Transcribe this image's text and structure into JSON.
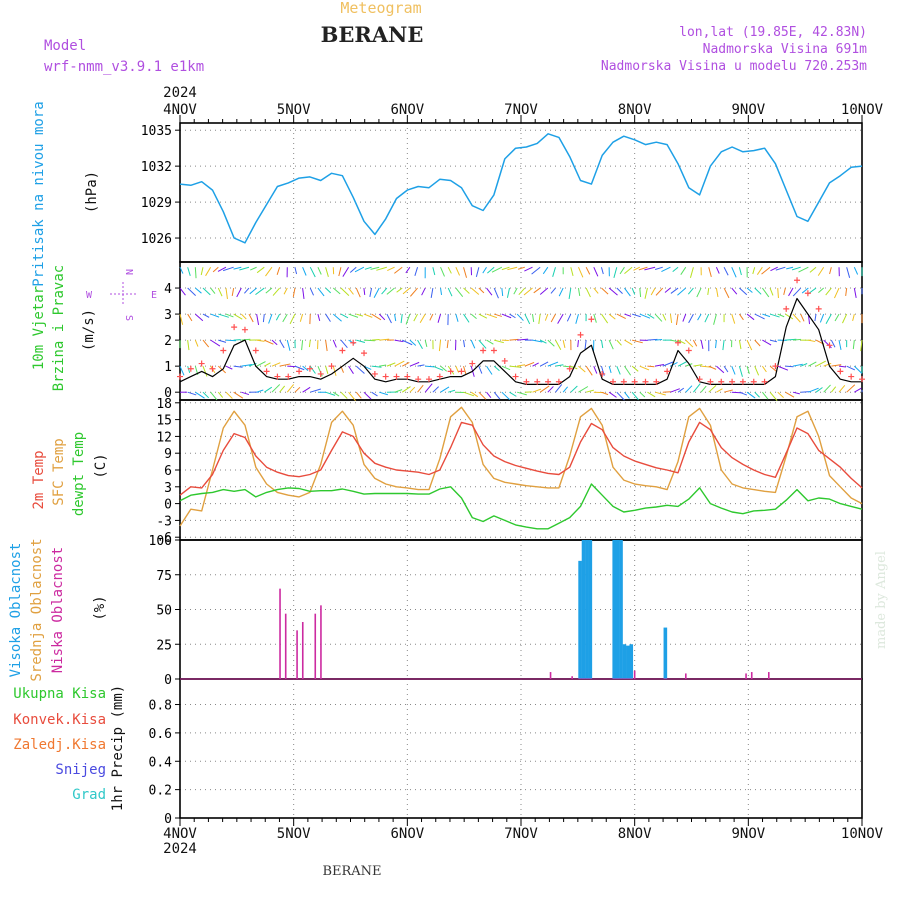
{
  "header": {
    "subtitle": "Meteogram",
    "station": "BERANE",
    "model_label": "Model",
    "model_name": "wrf-nmm_v3.9.1 e1km",
    "location": "lon,lat (19.85E, 42.83N)",
    "elevation": "Nadmorska Visina 691m",
    "model_elevation": "Nadmorska Visina u modelu 720.253m",
    "footer_station": "BERANE",
    "credit": "made by Angel"
  },
  "colors": {
    "pressure": "#1ea0e6",
    "wind_speed": "#000000",
    "wind_gust": "#ff5050",
    "temp_2m": "#e84c3d",
    "temp_sfc": "#e0a040",
    "dewpoint": "#2ec82e",
    "cloud_high": "#1ea0e6",
    "cloud_mid": "#e0a040",
    "cloud_low": "#cc2aa0",
    "header_purple": "#b04fe0",
    "header_orange": "#f0c060"
  },
  "chart_data": {
    "type": "line",
    "time_axis": {
      "year": "2024",
      "start": "4NOV",
      "end": "10NOV",
      "tick_labels": [
        "4NOV",
        "5NOV",
        "6NOV",
        "7NOV",
        "8NOV",
        "9NOV",
        "10NOV"
      ],
      "hours_step": 3
    },
    "panels": [
      {
        "id": "pressure",
        "ylabel": "Pritisak na nivou mora",
        "unit": "(hPa)",
        "ylim": [
          1024.0,
          1035.6
        ],
        "yticks": [
          1026,
          1029,
          1032,
          1035
        ],
        "series": [
          {
            "key": "mslp",
            "values": [
              1030.5,
              1030.4,
              1030.7,
              1030.0,
              1028.2,
              1026.0,
              1025.6,
              1027.3,
              1028.8,
              1030.3,
              1030.6,
              1031.0,
              1031.1,
              1030.8,
              1031.4,
              1031.2,
              1029.4,
              1027.4,
              1026.3,
              1027.6,
              1029.3,
              1030.0,
              1030.3,
              1030.2,
              1030.9,
              1030.8,
              1030.2,
              1028.7,
              1028.3,
              1029.6,
              1032.6,
              1033.5,
              1033.6,
              1033.9,
              1034.7,
              1034.4,
              1032.8,
              1030.8,
              1030.5,
              1032.9,
              1034.0,
              1034.5,
              1034.2,
              1033.8,
              1034.0,
              1033.8,
              1032.2,
              1030.2,
              1029.6,
              1032.0,
              1033.2,
              1033.6,
              1033.2,
              1033.3,
              1033.5,
              1032.2,
              1030.0,
              1027.8,
              1027.4,
              1029.0,
              1030.6,
              1031.2,
              1031.9,
              1032.0
            ]
          }
        ]
      },
      {
        "id": "wind",
        "ylabel": "10m Vjetar",
        "ylabel2": "Brzina i Pravac",
        "unit": "(m/s)",
        "ylim": [
          -0.3,
          5.0
        ],
        "yticks": [
          0,
          1,
          2,
          3,
          4
        ],
        "compass": [
          "W",
          "N",
          "S",
          "E"
        ],
        "series": [
          {
            "key": "speed",
            "values": [
              0.4,
              0.6,
              0.8,
              0.6,
              0.9,
              1.8,
              2.0,
              1.0,
              0.6,
              0.5,
              0.5,
              0.6,
              0.6,
              0.5,
              0.7,
              1.0,
              1.3,
              1.0,
              0.5,
              0.4,
              0.5,
              0.5,
              0.4,
              0.4,
              0.5,
              0.6,
              0.6,
              0.8,
              1.2,
              1.2,
              0.8,
              0.4,
              0.3,
              0.3,
              0.3,
              0.3,
              0.6,
              1.5,
              1.8,
              0.5,
              0.3,
              0.3,
              0.3,
              0.3,
              0.3,
              0.5,
              1.6,
              1.1,
              0.4,
              0.3,
              0.3,
              0.3,
              0.3,
              0.3,
              0.3,
              0.6,
              2.5,
              3.6,
              3.0,
              2.4,
              1.0,
              0.5,
              0.4,
              0.4
            ]
          },
          {
            "key": "gust",
            "values": [
              0.6,
              0.9,
              1.1,
              0.9,
              1.6,
              2.5,
              2.4,
              1.6,
              0.8,
              0.6,
              0.6,
              0.8,
              0.9,
              0.7,
              1.0,
              1.6,
              1.9,
              1.5,
              0.7,
              0.6,
              0.6,
              0.6,
              0.5,
              0.5,
              0.6,
              0.8,
              0.8,
              1.1,
              1.6,
              1.6,
              1.2,
              0.6,
              0.4,
              0.4,
              0.4,
              0.4,
              0.9,
              2.2,
              2.8,
              0.7,
              0.4,
              0.4,
              0.4,
              0.4,
              0.4,
              0.8,
              1.9,
              1.6,
              0.5,
              0.4,
              0.4,
              0.4,
              0.4,
              0.4,
              0.4,
              1.0,
              3.2,
              4.3,
              3.8,
              3.2,
              1.8,
              0.8,
              0.6,
              0.5
            ]
          }
        ]
      },
      {
        "id": "temperature",
        "ylabel": "2m Temp",
        "ylabel2": "SFC Temp",
        "ylabel3": "dewpt Temp",
        "unit": "(C)",
        "ylim": [
          -6.5,
          18.5
        ],
        "yticks": [
          -6,
          -3,
          0,
          3,
          6,
          9,
          12,
          15,
          18
        ],
        "series": [
          {
            "key": "t2m",
            "values": [
              1.5,
              3.0,
              2.8,
              5.2,
              9.5,
              12.5,
              11.8,
              8.5,
              6.5,
              5.6,
              5.0,
              4.8,
              5.2,
              6.0,
              9.5,
              12.8,
              12.0,
              9.0,
              7.2,
              6.5,
              6.0,
              5.8,
              5.6,
              5.2,
              6.0,
              10.0,
              14.5,
              14.0,
              10.5,
              8.5,
              7.5,
              6.8,
              6.3,
              5.8,
              5.4,
              5.2,
              6.5,
              11.0,
              14.3,
              13.2,
              10.0,
              8.5,
              7.6,
              7.0,
              6.4,
              6.0,
              5.5,
              11.0,
              14.5,
              13.2,
              10.0,
              8.2,
              7.0,
              6.0,
              5.2,
              4.7,
              9.0,
              13.5,
              12.5,
              9.5,
              8.0,
              6.5,
              4.5,
              2.8
            ]
          },
          {
            "key": "tsfc",
            "values": [
              -4.0,
              -1.0,
              -1.3,
              6.0,
              13.5,
              16.5,
              14.0,
              6.5,
              3.5,
              2.0,
              1.5,
              1.2,
              2.0,
              7.0,
              14.5,
              16.5,
              14.0,
              7.0,
              4.5,
              3.5,
              3.0,
              2.8,
              2.5,
              2.5,
              8.0,
              15.5,
              17.2,
              14.5,
              7.0,
              4.5,
              3.8,
              3.5,
              3.2,
              3.0,
              2.8,
              2.8,
              8.5,
              15.5,
              17.0,
              14.0,
              6.5,
              4.2,
              3.5,
              3.2,
              3.0,
              2.5,
              7.5,
              15.5,
              17.0,
              14.0,
              6.0,
              3.5,
              2.8,
              2.5,
              2.2,
              2.0,
              8.5,
              15.5,
              16.5,
              12.0,
              5.0,
              3.0,
              1.0,
              0.0
            ]
          },
          {
            "key": "dewpt",
            "values": [
              0.5,
              1.5,
              1.8,
              2.0,
              2.5,
              2.2,
              2.5,
              1.2,
              2.0,
              2.5,
              2.8,
              2.7,
              2.2,
              2.3,
              2.3,
              2.6,
              2.2,
              1.7,
              1.8,
              1.8,
              1.8,
              1.8,
              1.7,
              1.7,
              2.6,
              3.0,
              1.0,
              -2.5,
              -3.2,
              -2.2,
              -3.0,
              -3.8,
              -4.2,
              -4.5,
              -4.5,
              -3.5,
              -2.5,
              -0.5,
              3.5,
              1.5,
              -0.5,
              -1.5,
              -1.2,
              -0.8,
              -0.6,
              -0.3,
              -0.5,
              0.8,
              2.8,
              0.0,
              -0.8,
              -1.5,
              -1.8,
              -1.3,
              -1.2,
              -1.0,
              0.6,
              2.5,
              0.5,
              1.0,
              0.8,
              0.0,
              -0.5,
              -1.0
            ]
          }
        ]
      },
      {
        "id": "clouds",
        "ylabel": "Visoka Oblacnost",
        "ylabel2": "Srednja Oblacnost",
        "ylabel3": "Niska Oblacnost",
        "unit": "(%)",
        "ylim": [
          0,
          100
        ],
        "yticks": [
          0,
          25,
          50,
          75,
          100
        ],
        "series": [
          {
            "key": "high",
            "bars": [
              {
                "t": 35.2,
                "v": 85
              },
              {
                "t": 35.5,
                "v": 100
              },
              {
                "t": 35.8,
                "v": 100
              },
              {
                "t": 36.1,
                "v": 100
              },
              {
                "t": 38.2,
                "v": 100
              },
              {
                "t": 38.5,
                "v": 100
              },
              {
                "t": 38.8,
                "v": 100
              },
              {
                "t": 39.1,
                "v": 25
              },
              {
                "t": 39.4,
                "v": 24
              },
              {
                "t": 39.7,
                "v": 25
              },
              {
                "t": 42.7,
                "v": 37
              }
            ]
          },
          {
            "key": "low",
            "bars": [
              {
                "t": 8.8,
                "v": 65
              },
              {
                "t": 9.3,
                "v": 47
              },
              {
                "t": 10.3,
                "v": 35
              },
              {
                "t": 10.8,
                "v": 41
              },
              {
                "t": 11.9,
                "v": 47
              },
              {
                "t": 12.4,
                "v": 53
              },
              {
                "t": 32.6,
                "v": 5
              },
              {
                "t": 34.5,
                "v": 2
              },
              {
                "t": 40.0,
                "v": 6
              },
              {
                "t": 44.5,
                "v": 4
              },
              {
                "t": 49.8,
                "v": 4
              },
              {
                "t": 50.3,
                "v": 5
              },
              {
                "t": 51.8,
                "v": 5
              }
            ]
          }
        ]
      },
      {
        "id": "precip",
        "ylabel": "1hr Precip (mm)",
        "legend": [
          "Ukupna Kisa",
          "Konvek.Kisa",
          "Zaledj.Kisa",
          "Snijeg",
          "Grad"
        ],
        "ylim": [
          0,
          0.98
        ],
        "yticks": [
          0,
          0.2,
          0.4,
          0.6,
          0.8
        ],
        "series": []
      }
    ]
  }
}
